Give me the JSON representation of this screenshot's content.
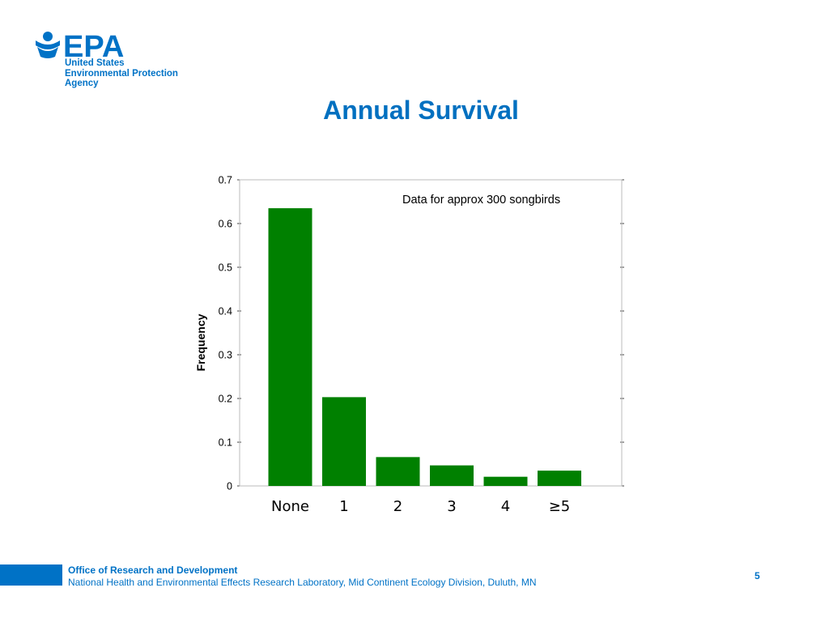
{
  "logo": {
    "icon": "epa-flower-logo",
    "wordmark": "EPA",
    "line1": "United States",
    "line2": "Environmental Protection",
    "line3": "Agency",
    "color": "#0072c6"
  },
  "slide": {
    "title": "Annual Survival",
    "title_color": "#0070c0"
  },
  "chart_data": {
    "type": "bar",
    "categories": [
      "None",
      "1",
      "2",
      "3",
      "4",
      "≥5"
    ],
    "values": [
      0.635,
      0.203,
      0.066,
      0.047,
      0.021,
      0.035
    ],
    "ylabel": "Frequency",
    "xlabel": "",
    "ylim": [
      0,
      0.7
    ],
    "yticks": [
      "0",
      "0.1",
      "0.2",
      "0.3",
      "0.4",
      "0.5",
      "0.6",
      "0.7"
    ],
    "annotation": "Data for approx 300 songbirds",
    "bar_color": "#008000",
    "grid": false
  },
  "footer": {
    "line1": "Office of Research and Development",
    "line2": "National Health and Environmental Effects Research Laboratory, Mid Continent Ecology Division, Duluth, MN",
    "page": "5",
    "color": "#0072c6"
  }
}
